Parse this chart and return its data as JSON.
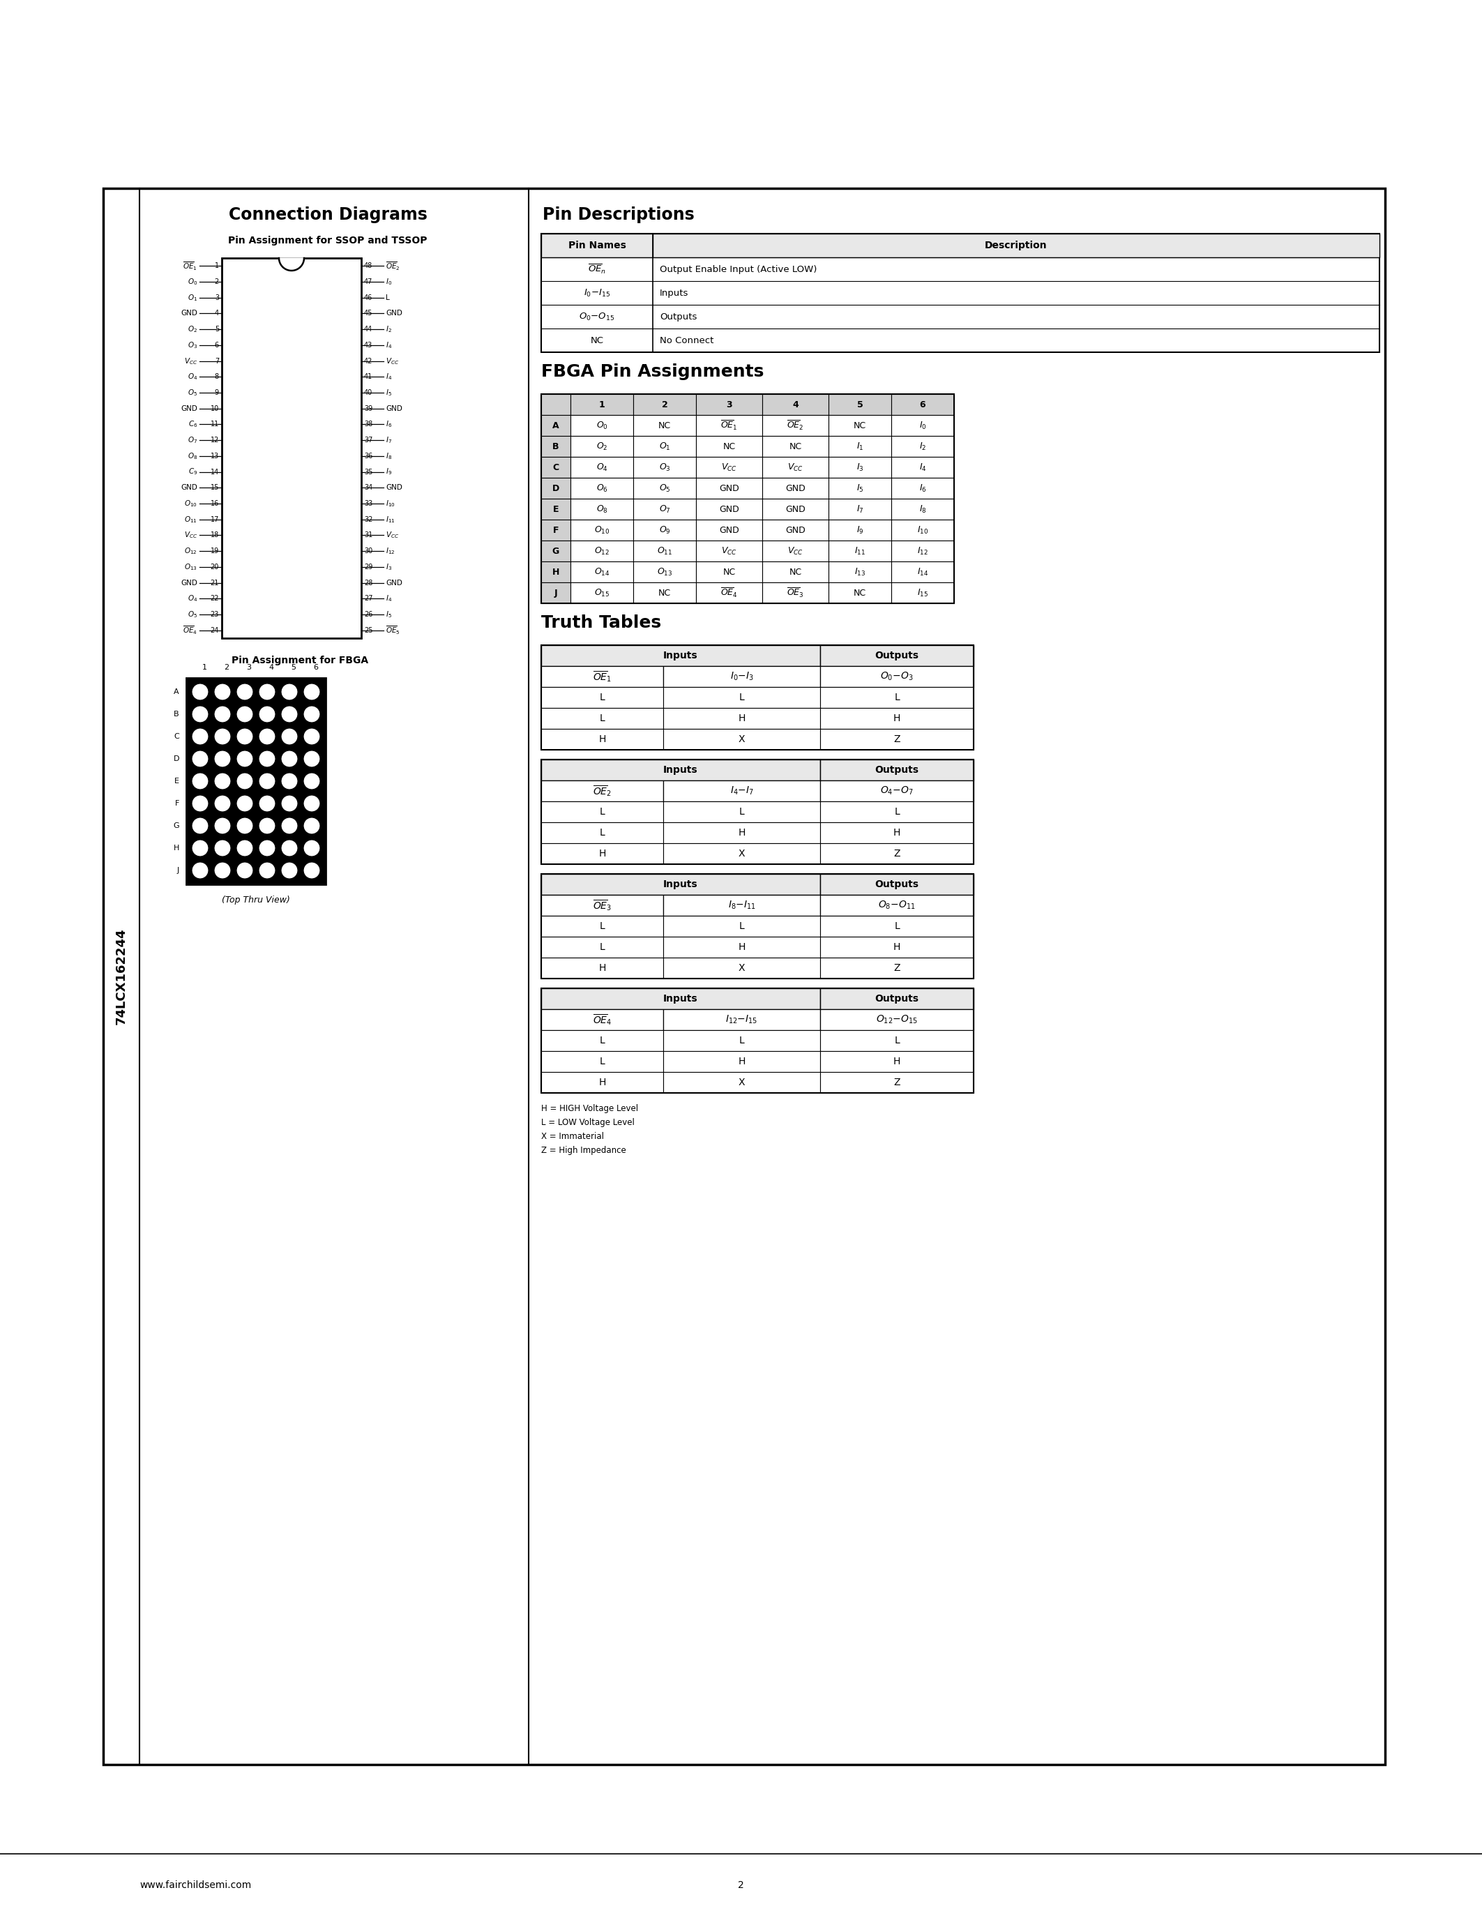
{
  "title_part": "74LCX162244",
  "page_number": "2",
  "website": "www.fairchildsemi.com",
  "bg_color": "#ffffff",
  "left_pins": [
    [
      "ҾE₁",
      "1"
    ],
    [
      "O₀",
      "2"
    ],
    [
      "O₁",
      "3"
    ],
    [
      "GND",
      "4"
    ],
    [
      "O₂",
      "5"
    ],
    [
      "O₃",
      "6"
    ],
    [
      "VₜC",
      "7"
    ],
    [
      "O₄",
      "8"
    ],
    [
      "O₅",
      "9"
    ],
    [
      "GND",
      "10"
    ],
    [
      "C₆",
      "11"
    ],
    [
      "O₇",
      "12"
    ],
    [
      "O₈",
      "13"
    ],
    [
      "C₉",
      "14"
    ],
    [
      "GND",
      "15"
    ],
    [
      "O₁₀",
      "16"
    ],
    [
      "O₁₁",
      "17"
    ],
    [
      "VₜC",
      "18"
    ],
    [
      "O₁₂",
      "19"
    ],
    [
      "O₁₃",
      "20"
    ],
    [
      "GND",
      "21"
    ],
    [
      "O₄",
      "22"
    ],
    [
      "O₅",
      "23"
    ],
    [
      "ҾE₄",
      "24"
    ]
  ],
  "right_pins": [
    [
      "ҾE₂",
      "48"
    ],
    [
      "I₀",
      "47"
    ],
    [
      "L",
      "46"
    ],
    [
      "GND",
      "45"
    ],
    [
      "I₂",
      "44"
    ],
    [
      "I₄",
      "43"
    ],
    [
      "VₜC",
      "42"
    ],
    [
      "I₄",
      "41"
    ],
    [
      "I₅",
      "40"
    ],
    [
      "GND",
      "39"
    ],
    [
      "I₆",
      "38"
    ],
    [
      "I₇",
      "37"
    ],
    [
      "I₈",
      "36"
    ],
    [
      "I₉",
      "35"
    ],
    [
      "GND",
      "34"
    ],
    [
      "I₁₀",
      "33"
    ],
    [
      "I₁₁",
      "32"
    ],
    [
      "VₜC",
      "31"
    ],
    [
      "I₁₂",
      "30"
    ],
    [
      "I₃",
      "29"
    ],
    [
      "GND",
      "28"
    ],
    [
      "I₄",
      "27"
    ],
    [
      "I₅",
      "26"
    ],
    [
      "ҾE₅",
      "25"
    ]
  ],
  "legend_lines": [
    "H = HIGH Voltage Level",
    "L = LOW Voltage Level",
    "X = Immaterial",
    "Z = High Impedance"
  ]
}
